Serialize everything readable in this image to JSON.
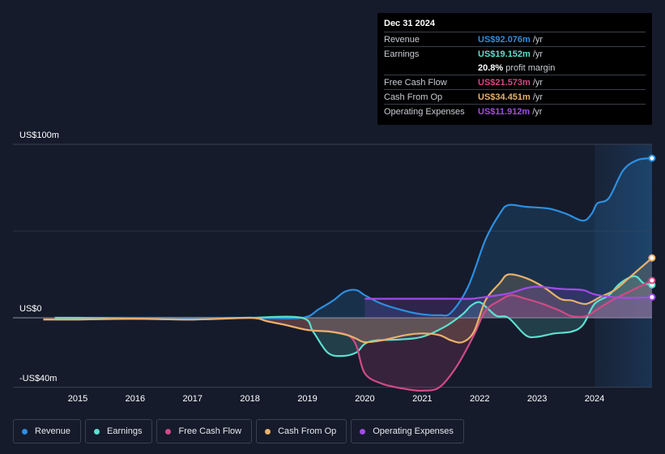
{
  "chart_data": {
    "type": "area",
    "y_axis_labels": {
      "top": "US$100m",
      "zero": "US$0",
      "bottom": "-US$40m"
    },
    "ylim": [
      -40,
      100
    ],
    "x_ticks": [
      "2015",
      "2016",
      "2017",
      "2018",
      "2019",
      "2020",
      "2021",
      "2022",
      "2023",
      "2024"
    ],
    "x_tick_values": [
      2015,
      2016,
      2017,
      2018,
      2019,
      2020,
      2021,
      2022,
      2023,
      2024
    ],
    "xlim": [
      2013.7,
      2025.0
    ],
    "highlight_start": 2024.0,
    "series": [
      {
        "name": "Revenue",
        "color": "#2d8fe0",
        "x": [
          2014.6,
          2015,
          2016,
          2017,
          2018,
          2018.9,
          2019.2,
          2019.45,
          2019.65,
          2019.85,
          2020.0,
          2020.3,
          2020.7,
          2021.0,
          2021.3,
          2021.5,
          2021.8,
          2022.1,
          2022.35,
          2022.5,
          2022.8,
          2023.2,
          2023.5,
          2023.8,
          2023.95,
          2024.05,
          2024.25,
          2024.5,
          2024.75,
          2025.0
        ],
        "y": [
          0,
          0,
          0,
          0,
          0,
          0,
          5,
          10,
          15,
          16,
          13,
          8,
          4,
          2,
          1.5,
          3,
          18,
          45,
          60,
          65,
          64,
          63,
          60,
          56,
          60,
          66,
          69,
          85,
          91,
          92
        ]
      },
      {
        "name": "Earnings",
        "color": "#5ce0cf",
        "x": [
          2014.6,
          2015,
          2016,
          2017,
          2018,
          2018.9,
          2019.1,
          2019.35,
          2019.6,
          2019.85,
          2020.0,
          2020.2,
          2020.6,
          2021.0,
          2021.4,
          2021.7,
          2021.85,
          2022.0,
          2022.15,
          2022.3,
          2022.5,
          2022.8,
          2023.0,
          2023.3,
          2023.6,
          2023.8,
          2024.0,
          2024.25,
          2024.45,
          2024.7,
          2024.85,
          2025.0
        ],
        "y": [
          0,
          0,
          -0.5,
          -1,
          0,
          0,
          -8,
          -20,
          -22,
          -20,
          -15,
          -13,
          -12.5,
          -11,
          -5,
          2,
          7,
          9,
          5,
          1,
          0,
          -10,
          -11,
          -9,
          -8,
          -4,
          8,
          13,
          20,
          24,
          20,
          19
        ]
      },
      {
        "name": "Free Cash Flow",
        "color": "#d14a85",
        "x": [
          2014.4,
          2015,
          2016,
          2017,
          2018,
          2018.3,
          2018.6,
          2019.0,
          2019.4,
          2019.7,
          2019.85,
          2020.0,
          2020.3,
          2020.7,
          2021.0,
          2021.3,
          2021.6,
          2021.9,
          2022.1,
          2022.35,
          2022.55,
          2022.8,
          2023.1,
          2023.4,
          2023.6,
          2023.85,
          2024.1,
          2024.35,
          2024.6,
          2025.0
        ],
        "y": [
          -1,
          -1,
          -0.5,
          -1,
          0,
          -2,
          -4,
          -7,
          -8,
          -10,
          -16,
          -32,
          -38,
          -41,
          -42,
          -40,
          -28,
          -10,
          4,
          10,
          13,
          11,
          8,
          4,
          1,
          1,
          6,
          11,
          15,
          21.5
        ]
      },
      {
        "name": "Cash From Op",
        "color": "#e8b26b",
        "x": [
          2014.4,
          2015,
          2016,
          2017,
          2018,
          2018.3,
          2018.6,
          2019.0,
          2019.4,
          2019.7,
          2019.85,
          2020.0,
          2020.3,
          2020.7,
          2021.0,
          2021.3,
          2021.5,
          2021.7,
          2021.9,
          2022.1,
          2022.35,
          2022.5,
          2022.8,
          2023.1,
          2023.4,
          2023.6,
          2023.85,
          2024.1,
          2024.35,
          2024.6,
          2025.0
        ],
        "y": [
          -1,
          -1,
          -0.5,
          -1,
          0,
          -2,
          -4,
          -7,
          -8,
          -10,
          -12,
          -14,
          -13,
          -10,
          -9,
          -10,
          -13,
          -14,
          -8,
          10,
          20,
          25,
          23,
          18,
          11,
          10,
          8,
          12,
          16,
          23,
          34.5
        ]
      },
      {
        "name": "Operating Expenses",
        "color": "#a24be6",
        "x": [
          2020.0,
          2020.5,
          2021.0,
          2021.5,
          2021.85,
          2022.1,
          2022.5,
          2022.8,
          2023.0,
          2023.3,
          2023.5,
          2023.8,
          2024.0,
          2024.3,
          2024.6,
          2025.0
        ],
        "y": [
          11,
          11,
          11,
          11,
          11,
          12,
          14,
          17,
          18,
          17,
          16.5,
          16,
          13.5,
          12,
          11.5,
          11.9
        ]
      }
    ]
  },
  "tooltip": {
    "date": "Dec 31 2024",
    "rows": [
      {
        "label": "Revenue",
        "value": "US$92.076m",
        "unit": "/yr",
        "color": "#2d8fe0"
      },
      {
        "label": "Earnings",
        "value": "US$19.152m",
        "unit": "/yr",
        "color": "#5ce0cf"
      },
      {
        "label": "",
        "value": "20.8%",
        "unit": "profit margin",
        "color": "#ffffff"
      },
      {
        "label": "Free Cash Flow",
        "value": "US$21.573m",
        "unit": "/yr",
        "color": "#d14a85"
      },
      {
        "label": "Cash From Op",
        "value": "US$34.451m",
        "unit": "/yr",
        "color": "#e8b26b"
      },
      {
        "label": "Operating Expenses",
        "value": "US$11.912m",
        "unit": "/yr",
        "color": "#a24be6"
      }
    ]
  },
  "legend": [
    {
      "label": "Revenue",
      "color": "#2d8fe0"
    },
    {
      "label": "Earnings",
      "color": "#5ce0cf"
    },
    {
      "label": "Free Cash Flow",
      "color": "#d14a85"
    },
    {
      "label": "Cash From Op",
      "color": "#e8b26b"
    },
    {
      "label": "Operating Expenses",
      "color": "#a24be6"
    }
  ]
}
